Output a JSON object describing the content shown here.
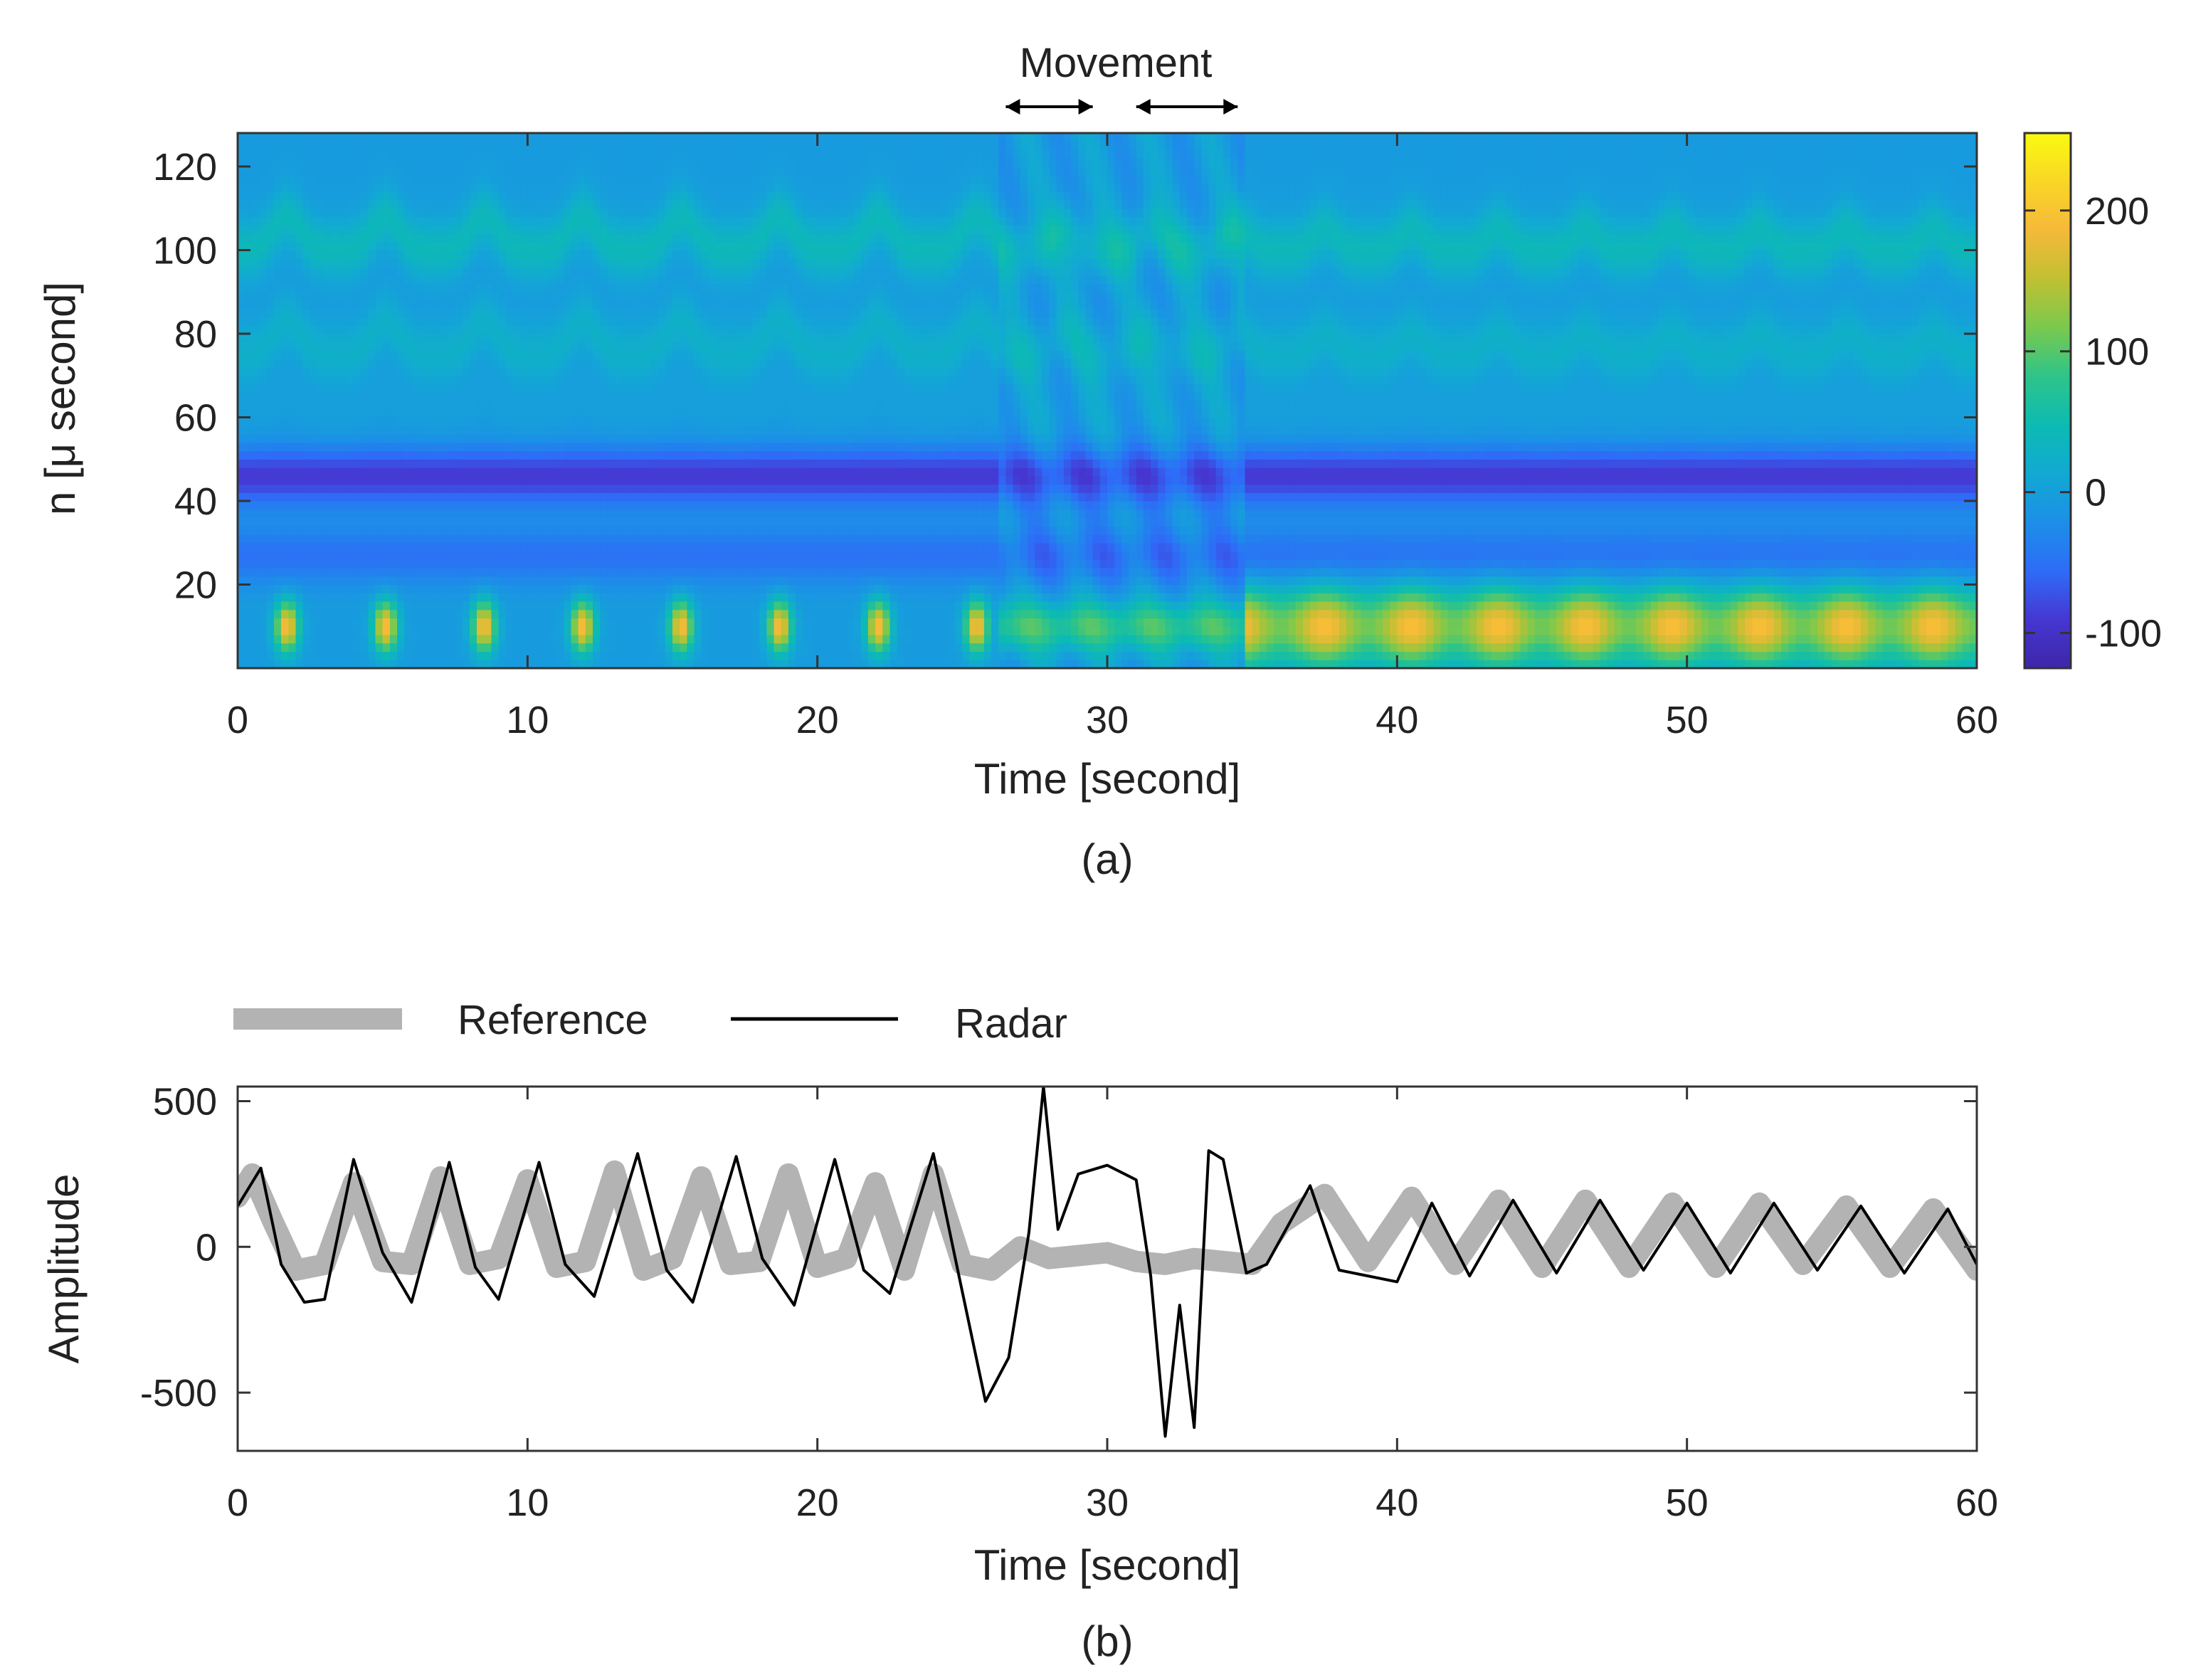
{
  "panels": [
    {
      "chart_data": {
        "type": "heatmap",
        "panel_label": "(a)",
        "title": "",
        "xlabel": "Time [second]",
        "ylabel": "n [μ second]",
        "xlim": [
          0,
          60
        ],
        "ylim": [
          0,
          128
        ],
        "xticks": [
          0,
          10,
          20,
          30,
          40,
          50,
          60
        ],
        "yticks": [
          20,
          40,
          60,
          80,
          100,
          120
        ],
        "annotation": {
          "text": "Movement",
          "intervals": [
            [
              26.5,
              29.5
            ],
            [
              31.0,
              34.5
            ]
          ]
        },
        "colorbar": {
          "range": [
            -125,
            255
          ],
          "ticks": [
            -100,
            0,
            100,
            200
          ],
          "colormap": "parula",
          "colors": [
            "#3e26a8",
            "#4637d2",
            "#2e6cf8",
            "#1c8fe7",
            "#12a9d3",
            "#0cbbb2",
            "#2ec489",
            "#7ac94e",
            "#c1c032",
            "#f5b93a",
            "#f9d626",
            "#f9fb0e"
          ]
        },
        "description_series": {
          "breathing_period_before": 3.4,
          "breathing_period_after": 3.0,
          "band_levels": [
            {
              "n": 100,
              "value": 45
            },
            {
              "n": 75,
              "value": 30
            },
            {
              "n": 58,
              "value": 5
            },
            {
              "n": 46,
              "value": -85
            },
            {
              "n": 27,
              "value": -45
            },
            {
              "n": 10,
              "value": 200
            }
          ]
        }
      }
    },
    {
      "chart_data": {
        "type": "line",
        "panel_label": "(b)",
        "title": "",
        "xlabel": "Time [second]",
        "ylabel": "Amplitude",
        "xlim": [
          0,
          60
        ],
        "ylim": [
          -700,
          550
        ],
        "xticks": [
          0,
          10,
          20,
          30,
          40,
          50,
          60
        ],
        "yticks": [
          500,
          0,
          -500
        ],
        "legend": {
          "position": "top",
          "entries": [
            "Reference",
            "Radar"
          ]
        },
        "series": [
          {
            "name": "Reference",
            "color": "#b3b3b3",
            "x": [
              0,
              0.5,
              1.2,
              2.0,
              3.0,
              4.0,
              5.0,
              6.0,
              7.0,
              8.0,
              9.0,
              10.0,
              11.0,
              12.0,
              13.0,
              14.0,
              15.0,
              16.0,
              17.0,
              18.0,
              19.0,
              20.0,
              21.0,
              22.0,
              23.0,
              24.0,
              25.0,
              26.0,
              27.0,
              28.0,
              29.0,
              30.0,
              31.0,
              32.0,
              33.0,
              34.0,
              35.0,
              36.0,
              37.5,
              39.0,
              40.5,
              42.0,
              43.5,
              45.0,
              46.5,
              48.0,
              49.5,
              51.0,
              52.5,
              54.0,
              55.5,
              57.0,
              58.5,
              60.0
            ],
            "y": [
              170,
              250,
              90,
              -80,
              -60,
              220,
              -50,
              -60,
              240,
              -60,
              -40,
              230,
              -70,
              -50,
              260,
              -80,
              -40,
              240,
              -60,
              -50,
              250,
              -70,
              -40,
              220,
              -80,
              250,
              -60,
              -80,
              0,
              -40,
              -30,
              -20,
              -50,
              -60,
              -40,
              -50,
              -60,
              80,
              180,
              -50,
              170,
              -60,
              160,
              -70,
              160,
              -70,
              150,
              -70,
              150,
              -60,
              140,
              -70,
              130,
              -80
            ]
          },
          {
            "name": "Radar",
            "color": "#000000",
            "x": [
              0,
              0.8,
              1.5,
              2.3,
              3.0,
              4.0,
              5.0,
              6.0,
              7.3,
              8.2,
              9.0,
              10.4,
              11.3,
              12.3,
              13.8,
              14.8,
              15.7,
              17.2,
              18.1,
              19.2,
              20.6,
              21.6,
              22.5,
              24.0,
              24.8,
              25.8,
              26.6,
              27.3,
              27.8,
              28.3,
              29.0,
              30.0,
              31.0,
              31.5,
              32.0,
              32.5,
              33.0,
              33.5,
              34.0,
              34.8,
              35.5,
              37.0,
              38.0,
              40.0,
              41.2,
              42.5,
              44.0,
              45.5,
              47.0,
              48.5,
              50.0,
              51.5,
              53.0,
              54.5,
              56.0,
              57.5,
              59.0,
              60.0
            ],
            "y": [
              140,
              270,
              -60,
              -190,
              -180,
              300,
              -20,
              -190,
              290,
              -70,
              -180,
              290,
              -60,
              -170,
              320,
              -80,
              -190,
              310,
              -40,
              -200,
              300,
              -80,
              -160,
              320,
              -60,
              -530,
              -380,
              50,
              550,
              60,
              250,
              280,
              230,
              -100,
              -650,
              -200,
              -620,
              330,
              300,
              -90,
              -60,
              210,
              -80,
              -120,
              150,
              -100,
              160,
              -90,
              160,
              -80,
              150,
              -90,
              150,
              -80,
              140,
              -90,
              130,
              -60
            ]
          }
        ]
      }
    }
  ]
}
